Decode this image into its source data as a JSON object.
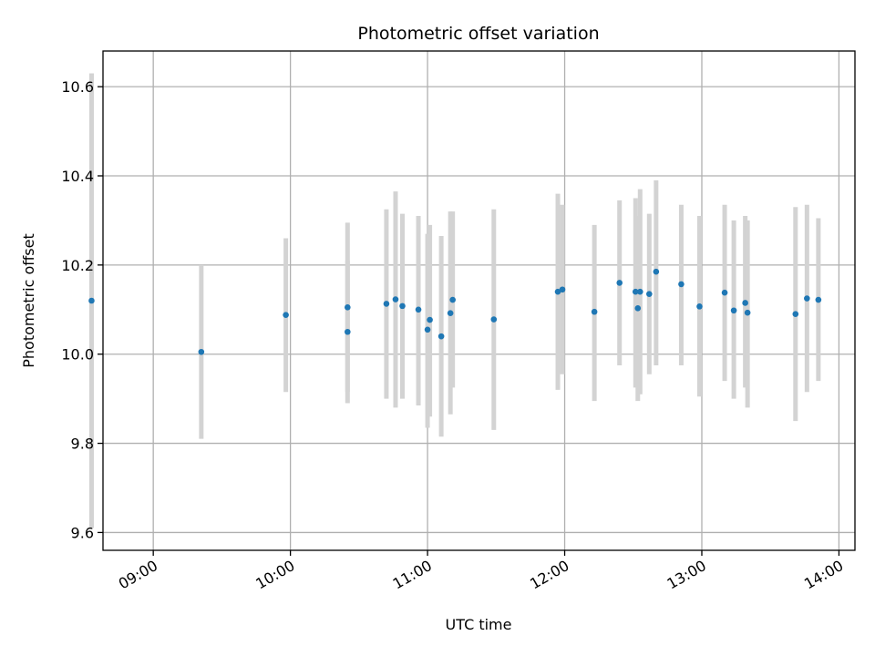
{
  "chart_data": {
    "type": "scatter",
    "title": "Photometric offset variation",
    "xlabel": "UTC time",
    "ylabel": "Photometric offset",
    "xlim": [
      "08:38",
      "14:07"
    ],
    "ylim": [
      9.56,
      10.68
    ],
    "x_ticks": [
      "09:00",
      "10:00",
      "11:00",
      "12:00",
      "13:00",
      "14:00"
    ],
    "y_ticks": [
      9.6,
      9.8,
      10.0,
      10.2,
      10.4,
      10.6
    ],
    "grid": true,
    "error_bar_color": "#d3d3d3",
    "point_color": "#1f77b4",
    "points": [
      {
        "x": "08:33",
        "y": 10.12,
        "yerr_low": 9.61,
        "yerr_high": 10.63
      },
      {
        "x": "09:21",
        "y": 10.005,
        "yerr_low": 9.81,
        "yerr_high": 10.2
      },
      {
        "x": "09:58",
        "y": 10.088,
        "yerr_low": 9.915,
        "yerr_high": 10.26
      },
      {
        "x": "10:25",
        "y": 10.05,
        "yerr_low": 9.89,
        "yerr_high": 10.21
      },
      {
        "x": "10:25",
        "y": 10.105,
        "yerr_low": 9.915,
        "yerr_high": 10.295
      },
      {
        "x": "10:42",
        "y": 10.113,
        "yerr_low": 9.9,
        "yerr_high": 10.325
      },
      {
        "x": "10:46",
        "y": 10.123,
        "yerr_low": 9.88,
        "yerr_high": 10.365
      },
      {
        "x": "10:49",
        "y": 10.108,
        "yerr_low": 9.9,
        "yerr_high": 10.315
      },
      {
        "x": "10:56",
        "y": 10.1,
        "yerr_low": 9.885,
        "yerr_high": 10.31
      },
      {
        "x": "11:00",
        "y": 10.055,
        "yerr_low": 9.835,
        "yerr_high": 10.27
      },
      {
        "x": "11:01",
        "y": 10.077,
        "yerr_low": 9.86,
        "yerr_high": 10.29
      },
      {
        "x": "11:06",
        "y": 10.04,
        "yerr_low": 9.815,
        "yerr_high": 10.265
      },
      {
        "x": "11:10",
        "y": 10.092,
        "yerr_low": 9.865,
        "yerr_high": 10.32
      },
      {
        "x": "11:11",
        "y": 10.122,
        "yerr_low": 9.925,
        "yerr_high": 10.32
      },
      {
        "x": "11:29",
        "y": 10.078,
        "yerr_low": 9.83,
        "yerr_high": 10.325
      },
      {
        "x": "11:57",
        "y": 10.14,
        "yerr_low": 9.92,
        "yerr_high": 10.36
      },
      {
        "x": "11:59",
        "y": 10.145,
        "yerr_low": 9.955,
        "yerr_high": 10.335
      },
      {
        "x": "12:13",
        "y": 10.095,
        "yerr_low": 9.895,
        "yerr_high": 10.29
      },
      {
        "x": "12:24",
        "y": 10.16,
        "yerr_low": 9.975,
        "yerr_high": 10.345
      },
      {
        "x": "12:31",
        "y": 10.14,
        "yerr_low": 9.925,
        "yerr_high": 10.35
      },
      {
        "x": "12:32",
        "y": 10.103,
        "yerr_low": 9.895,
        "yerr_high": 10.31
      },
      {
        "x": "12:33",
        "y": 10.14,
        "yerr_low": 9.91,
        "yerr_high": 10.37
      },
      {
        "x": "12:37",
        "y": 10.135,
        "yerr_low": 9.955,
        "yerr_high": 10.315
      },
      {
        "x": "12:40",
        "y": 10.185,
        "yerr_low": 9.975,
        "yerr_high": 10.39
      },
      {
        "x": "12:51",
        "y": 10.157,
        "yerr_low": 9.975,
        "yerr_high": 10.335
      },
      {
        "x": "12:59",
        "y": 10.107,
        "yerr_low": 9.905,
        "yerr_high": 10.31
      },
      {
        "x": "13:10",
        "y": 10.138,
        "yerr_low": 9.94,
        "yerr_high": 10.335
      },
      {
        "x": "13:14",
        "y": 10.098,
        "yerr_low": 9.9,
        "yerr_high": 10.3
      },
      {
        "x": "13:19",
        "y": 10.115,
        "yerr_low": 9.925,
        "yerr_high": 10.31
      },
      {
        "x": "13:20",
        "y": 10.093,
        "yerr_low": 9.88,
        "yerr_high": 10.3
      },
      {
        "x": "13:41",
        "y": 10.09,
        "yerr_low": 9.85,
        "yerr_high": 10.33
      },
      {
        "x": "13:46",
        "y": 10.125,
        "yerr_low": 9.915,
        "yerr_high": 10.335
      },
      {
        "x": "13:51",
        "y": 10.122,
        "yerr_low": 9.94,
        "yerr_high": 10.305
      }
    ]
  }
}
